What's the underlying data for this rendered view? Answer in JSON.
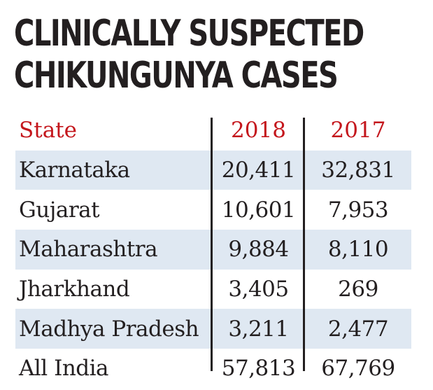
{
  "title_lines": [
    "CLINICALLY SUSPECTED",
    "CHIKUNGUNYA CASES"
  ],
  "chart_data": {
    "type": "table",
    "columns": [
      "State",
      "2018",
      "2017"
    ],
    "rows": [
      {
        "state": "Karnataka",
        "y2018": "20,411",
        "y2017": "32,831"
      },
      {
        "state": "Gujarat",
        "y2018": "10,601",
        "y2017": "7,953"
      },
      {
        "state": "Maharashtra",
        "y2018": "9,884",
        "y2017": "8,110"
      },
      {
        "state": "Jharkhand",
        "y2018": "3,405",
        "y2017": "269"
      },
      {
        "state": "Madhya Pradesh",
        "y2018": "3,211",
        "y2017": "2,477"
      },
      {
        "state": "All India",
        "y2018": "57,813",
        "y2017": "67,769"
      }
    ]
  },
  "colors": {
    "header_text": "#c4161c",
    "row_shade": "#dfe8f2",
    "text": "#231f20"
  }
}
